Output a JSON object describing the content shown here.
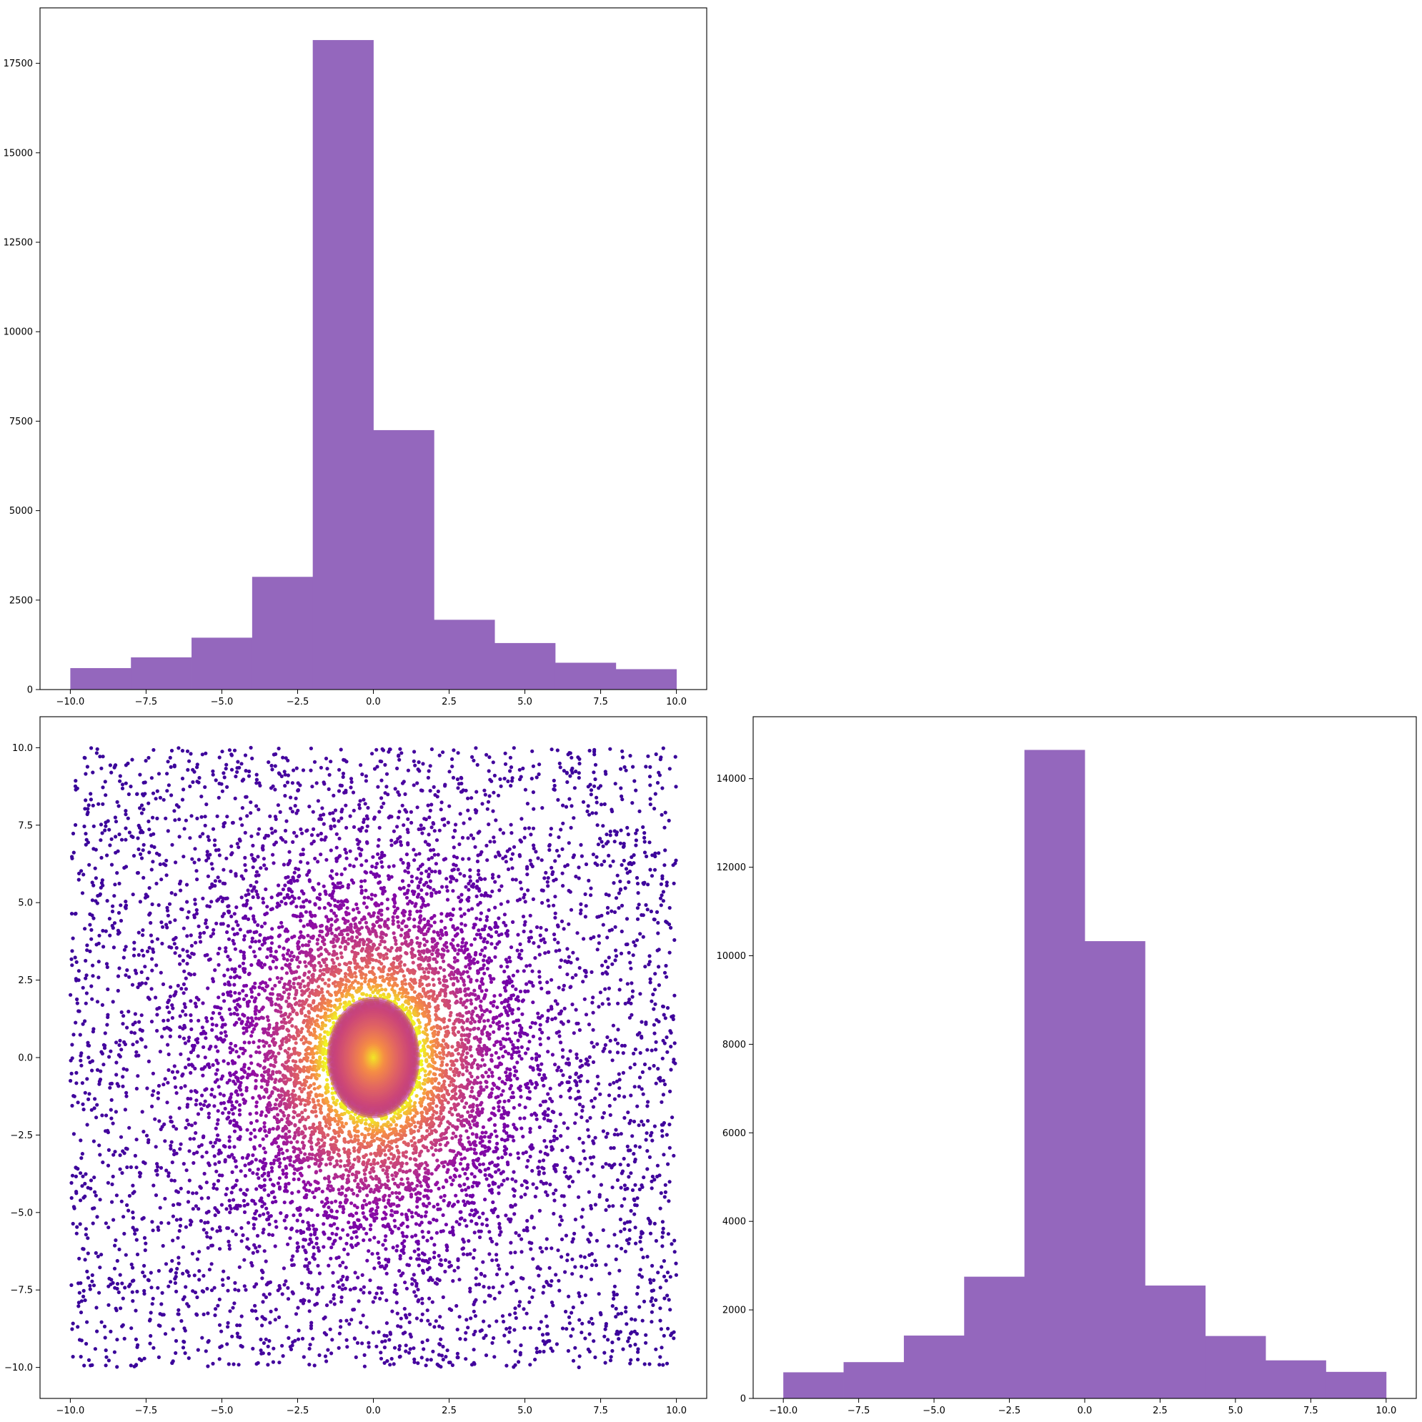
{
  "chart_data": [
    {
      "type": "bar",
      "panel": "top-left",
      "title": "",
      "xlabel": "",
      "ylabel": "",
      "bin_edges": [
        -10,
        -8,
        -6,
        -4,
        -2,
        0,
        2,
        4,
        6,
        8,
        10
      ],
      "values": [
        600,
        900,
        1450,
        3150,
        18150,
        7250,
        1950,
        1300,
        750,
        570
      ],
      "color": "#9467bd",
      "xlim": [
        -11,
        11
      ],
      "ylim": [
        0,
        19050
      ],
      "xticks": [
        -10,
        -7.5,
        -5,
        -2.5,
        0,
        2.5,
        5,
        7.5,
        10
      ],
      "xtick_labels": [
        "−10.0",
        "−7.5",
        "−5.0",
        "−2.5",
        "0.0",
        "2.5",
        "5.0",
        "7.5",
        "10.0"
      ],
      "yticks": [
        0,
        2500,
        5000,
        7500,
        10000,
        12500,
        15000,
        17500
      ],
      "ytick_labels": [
        "0",
        "2500",
        "5000",
        "7500",
        "10000",
        "12500",
        "15000",
        "17500"
      ],
      "grid": false
    },
    {
      "type": "scatter",
      "panel": "bottom-left",
      "title": "",
      "xlabel": "",
      "ylabel": "",
      "description": "density-colored scatter, uniform spread over [-10,10]x[-10,10] with strong concentration near origin",
      "x_range": [
        -10,
        10
      ],
      "y_range": [
        -10,
        10
      ],
      "density_peak": [
        0,
        0
      ],
      "colormap": "plasma",
      "colormap_low": "#2c0594",
      "colormap_high": "#f0f921",
      "xlim": [
        -11,
        11
      ],
      "ylim": [
        -11,
        11
      ],
      "xticks": [
        -10,
        -7.5,
        -5,
        -2.5,
        0,
        2.5,
        5,
        7.5,
        10
      ],
      "xtick_labels": [
        "−10.0",
        "−7.5",
        "−5.0",
        "−2.5",
        "0.0",
        "2.5",
        "5.0",
        "7.5",
        "10.0"
      ],
      "yticks": [
        -10,
        -7.5,
        -5,
        -2.5,
        0,
        2.5,
        5,
        7.5,
        10
      ],
      "ytick_labels": [
        "−10.0",
        "−7.5",
        "−5.0",
        "−2.5",
        "0.0",
        "2.5",
        "5.0",
        "7.5",
        "10.0"
      ],
      "grid": false
    },
    {
      "type": "bar",
      "panel": "bottom-right",
      "title": "",
      "xlabel": "",
      "ylabel": "",
      "bin_edges": [
        -10,
        -8,
        -6,
        -4,
        -2,
        0,
        2,
        4,
        6,
        8,
        10
      ],
      "values": [
        590,
        820,
        1420,
        2750,
        14650,
        10330,
        2550,
        1410,
        860,
        600
      ],
      "color": "#9467bd",
      "xlim": [
        -11,
        11
      ],
      "ylim": [
        0,
        15400
      ],
      "xticks": [
        -10,
        -7.5,
        -5,
        -2.5,
        0,
        2.5,
        5,
        7.5,
        10
      ],
      "xtick_labels": [
        "−10.0",
        "−7.5",
        "−5.0",
        "−2.5",
        "0.0",
        "2.5",
        "5.0",
        "7.5",
        "10.0"
      ],
      "yticks": [
        0,
        2000,
        4000,
        6000,
        8000,
        10000,
        12000,
        14000
      ],
      "ytick_labels": [
        "0",
        "2000",
        "4000",
        "6000",
        "8000",
        "10000",
        "12000",
        "14000"
      ],
      "grid": false
    }
  ]
}
